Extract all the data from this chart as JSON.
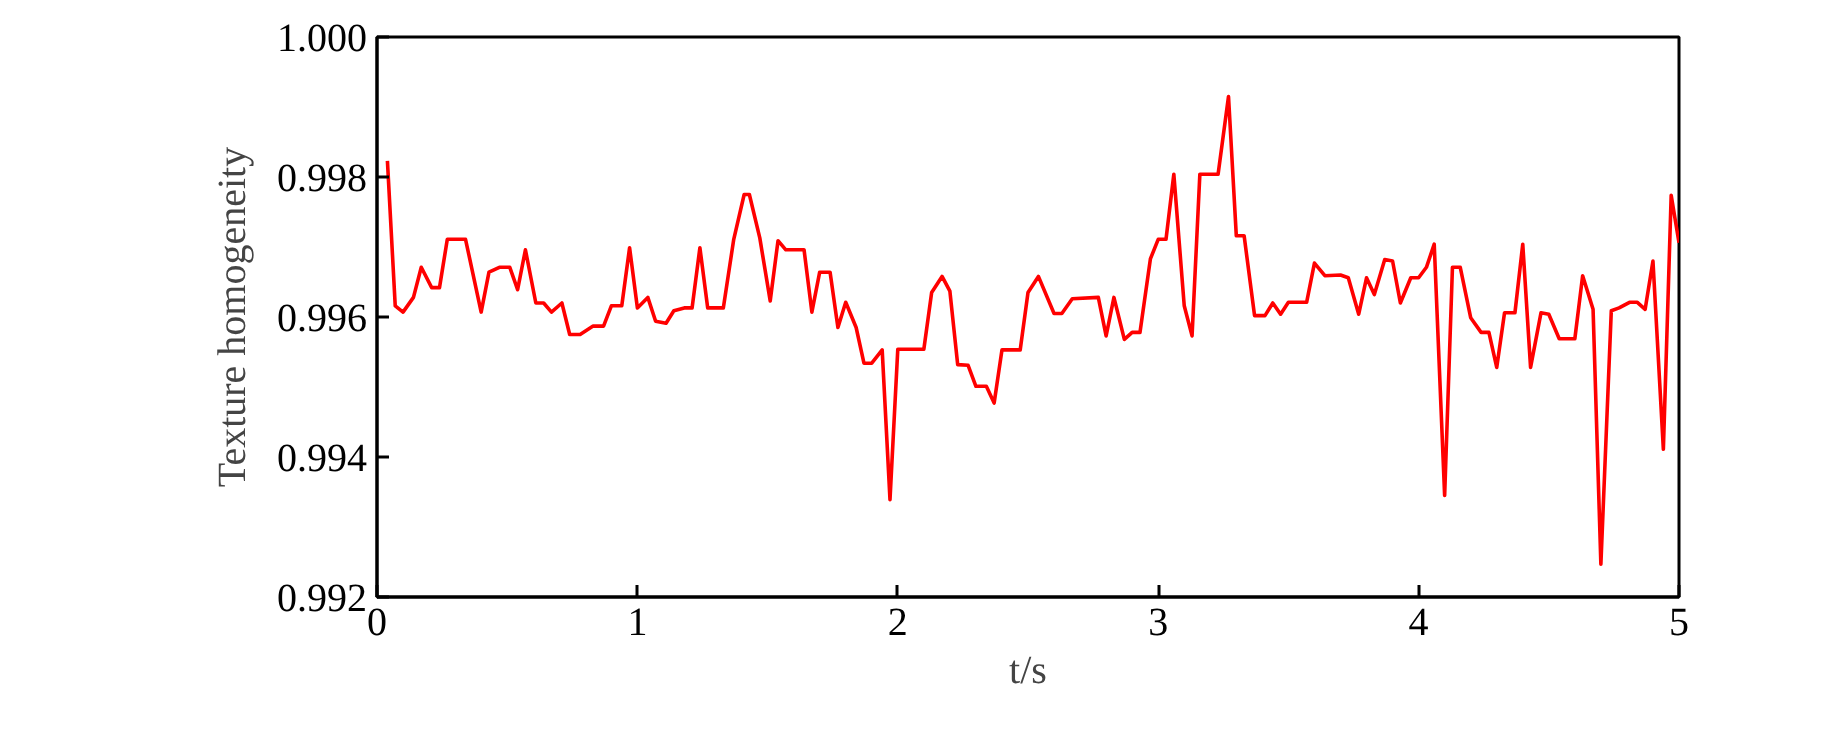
{
  "chart_data": {
    "type": "line",
    "xlabel": "t/s",
    "ylabel": "Texture homogeneity",
    "xlim": [
      0,
      5
    ],
    "ylim": [
      0.992,
      1.0
    ],
    "xticks": [
      0,
      1,
      2,
      3,
      4,
      5
    ],
    "yticks": [
      {
        "value": 0.992,
        "label": "0.992"
      },
      {
        "value": 0.994,
        "label": "0.994"
      },
      {
        "value": 0.996,
        "label": "0.996"
      },
      {
        "value": 0.998,
        "label": "0.998"
      },
      {
        "value": 1.0,
        "label": "1.000"
      }
    ],
    "grid": false,
    "marker": "none",
    "line_style": "solid",
    "series": [
      {
        "color": "#ff0000",
        "x": [
          0.04,
          0.07,
          0.1,
          0.14,
          0.17,
          0.21,
          0.24,
          0.27,
          0.34,
          0.4,
          0.43,
          0.47,
          0.51,
          0.54,
          0.57,
          0.61,
          0.64,
          0.67,
          0.71,
          0.74,
          0.78,
          0.83,
          0.87,
          0.9,
          0.94,
          0.97,
          1.0,
          1.04,
          1.07,
          1.11,
          1.14,
          1.18,
          1.21,
          1.24,
          1.27,
          1.33,
          1.37,
          1.41,
          1.43,
          1.47,
          1.51,
          1.54,
          1.57,
          1.64,
          1.67,
          1.7,
          1.74,
          1.77,
          1.8,
          1.84,
          1.87,
          1.9,
          1.94,
          1.97,
          2.0,
          2.1,
          2.13,
          2.17,
          2.2,
          2.23,
          2.27,
          2.3,
          2.34,
          2.37,
          2.4,
          2.47,
          2.5,
          2.54,
          2.6,
          2.63,
          2.67,
          2.77,
          2.8,
          2.83,
          2.87,
          2.9,
          2.93,
          2.97,
          3.0,
          3.03,
          3.06,
          3.1,
          3.13,
          3.16,
          3.23,
          3.27,
          3.3,
          3.33,
          3.37,
          3.41,
          3.44,
          3.47,
          3.5,
          3.57,
          3.6,
          3.64,
          3.7,
          3.73,
          3.77,
          3.8,
          3.83,
          3.87,
          3.9,
          3.93,
          3.97,
          4.0,
          4.03,
          4.06,
          4.1,
          4.13,
          4.16,
          4.2,
          4.24,
          4.27,
          4.3,
          4.33,
          4.37,
          4.4,
          4.43,
          4.47,
          4.5,
          4.54,
          4.6,
          4.63,
          4.67,
          4.7,
          4.74,
          4.77,
          4.81,
          4.84,
          4.87,
          4.9,
          4.94,
          4.97,
          5.0
        ],
        "values": [
          0.99823,
          0.99616,
          0.99607,
          0.99628,
          0.99671,
          0.99642,
          0.99642,
          0.99711,
          0.99711,
          0.99607,
          0.99664,
          0.99671,
          0.99671,
          0.99639,
          0.99696,
          0.9962,
          0.9962,
          0.99607,
          0.9962,
          0.99575,
          0.99575,
          0.99587,
          0.99587,
          0.99616,
          0.99616,
          0.99699,
          0.99613,
          0.99628,
          0.99594,
          0.99591,
          0.99609,
          0.99613,
          0.99613,
          0.99699,
          0.99613,
          0.99613,
          0.99711,
          0.99775,
          0.99775,
          0.99713,
          0.99623,
          0.99709,
          0.99696,
          0.99696,
          0.99607,
          0.99664,
          0.99664,
          0.99585,
          0.99621,
          0.99585,
          0.99534,
          0.99534,
          0.99553,
          0.99339,
          0.99554,
          0.99554,
          0.99635,
          0.99658,
          0.99637,
          0.99532,
          0.99531,
          0.99501,
          0.99501,
          0.99477,
          0.99553,
          0.99553,
          0.99635,
          0.99658,
          0.99605,
          0.99605,
          0.99626,
          0.99628,
          0.99573,
          0.99628,
          0.99568,
          0.99578,
          0.99578,
          0.99683,
          0.99711,
          0.99711,
          0.99804,
          0.99616,
          0.99573,
          0.99804,
          0.99804,
          0.99915,
          0.99716,
          0.99716,
          0.99602,
          0.99602,
          0.9962,
          0.99604,
          0.99621,
          0.99621,
          0.99677,
          0.99659,
          0.9966,
          0.99656,
          0.99604,
          0.99656,
          0.99632,
          0.99682,
          0.9968,
          0.9962,
          0.99656,
          0.99656,
          0.99671,
          0.99704,
          0.99345,
          0.99671,
          0.99671,
          0.99599,
          0.99578,
          0.99578,
          0.99528,
          0.99606,
          0.99606,
          0.99704,
          0.99528,
          0.99606,
          0.99604,
          0.99569,
          0.99569,
          0.99659,
          0.99611,
          0.99247,
          0.99609,
          0.99613,
          0.99621,
          0.99621,
          0.99611,
          0.9968,
          0.99411,
          0.99774,
          0.99706
        ]
      }
    ]
  }
}
